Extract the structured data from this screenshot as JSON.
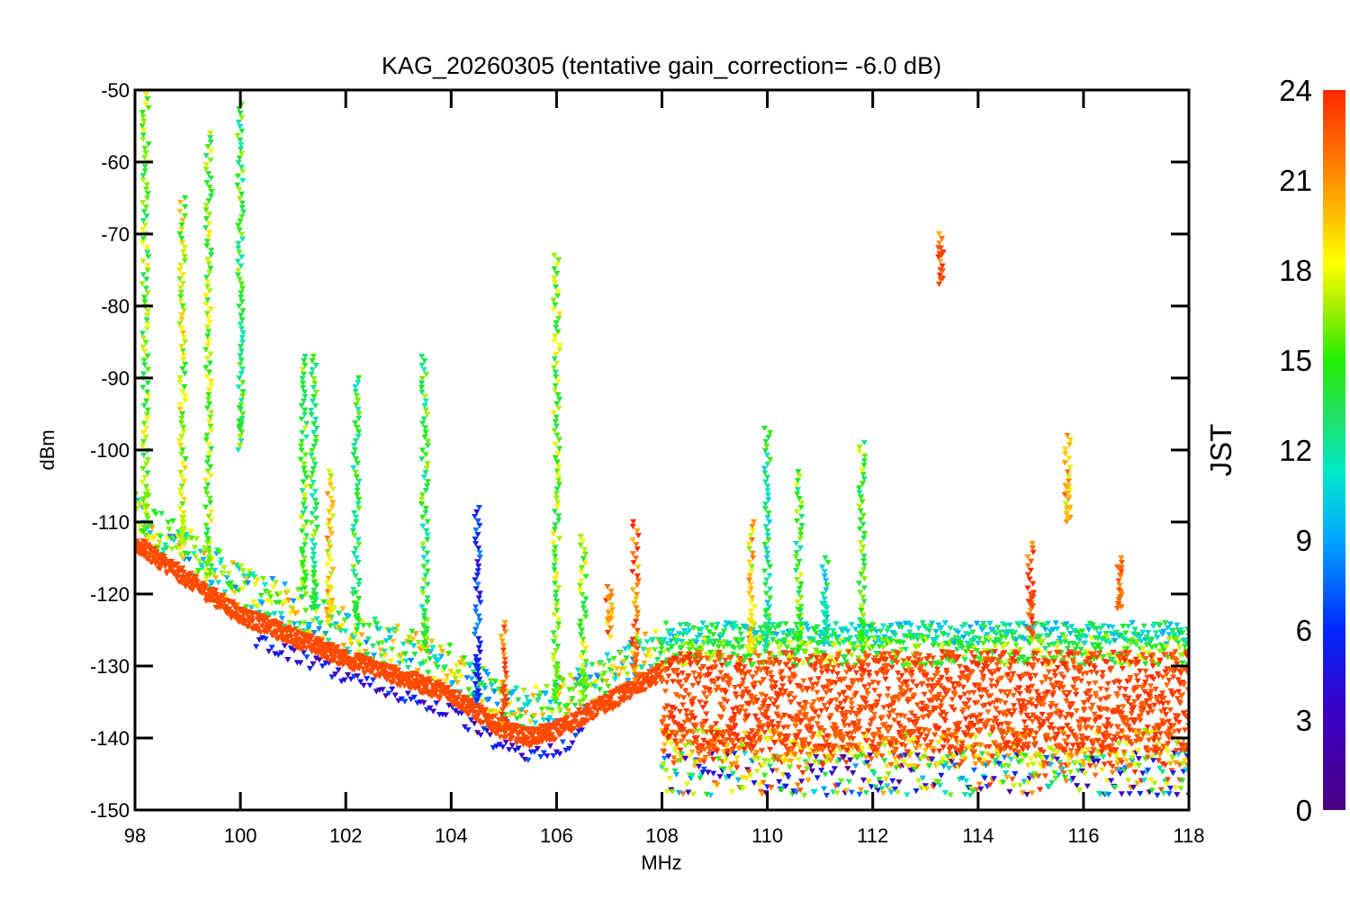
{
  "chart_data": {
    "type": "scatter",
    "title": "KAG_20260305 (tentative gain_correction= -6.0 dB)",
    "xlabel": "MHz",
    "ylabel": "dBm",
    "xlim": [
      98,
      118
    ],
    "ylim": [
      -150,
      -50
    ],
    "x_ticks": [
      98,
      100,
      102,
      104,
      106,
      108,
      110,
      112,
      114,
      116,
      118
    ],
    "y_ticks": [
      -50,
      -60,
      -70,
      -80,
      -90,
      -100,
      -110,
      -120,
      -130,
      -140,
      -150
    ],
    "colorbar": {
      "label": "JST",
      "range": [
        0,
        24
      ],
      "ticks": [
        0,
        3,
        6,
        9,
        12,
        15,
        18,
        21,
        24
      ],
      "colormap": "rainbow (purple → blue → cyan → green → yellow → orange → red)"
    },
    "noise_floor": {
      "x": [
        98,
        100,
        102,
        104,
        105,
        105.5,
        106,
        107,
        108
      ],
      "y": [
        -113,
        -123,
        -129,
        -134,
        -139,
        -140,
        -139,
        -135,
        -131
      ]
    },
    "noise_floor_above_108": {
      "median": -135,
      "spread_low": -148,
      "spread_high": -124
    },
    "signal_lines": [
      {
        "freq": 98.2,
        "top": -50,
        "bottom": -112,
        "jst": 16
      },
      {
        "freq": 98.9,
        "top": -65,
        "bottom": -115,
        "jst": 17
      },
      {
        "freq": 99.4,
        "top": -56,
        "bottom": -118,
        "jst": 16
      },
      {
        "freq": 100.0,
        "top": -52,
        "bottom": -100,
        "jst": 14
      },
      {
        "freq": 101.2,
        "top": -87,
        "bottom": -120,
        "jst": 15
      },
      {
        "freq": 101.4,
        "top": -87,
        "bottom": -122,
        "jst": 14
      },
      {
        "freq": 101.7,
        "top": -103,
        "bottom": -124,
        "jst": 19
      },
      {
        "freq": 102.2,
        "top": -90,
        "bottom": -125,
        "jst": 14
      },
      {
        "freq": 103.5,
        "top": -87,
        "bottom": -128,
        "jst": 14
      },
      {
        "freq": 104.5,
        "top": -108,
        "bottom": -135,
        "jst": 6
      },
      {
        "freq": 105.0,
        "top": -124,
        "bottom": -138,
        "jst": 23
      },
      {
        "freq": 106.0,
        "top": -73,
        "bottom": -136,
        "jst": 16
      },
      {
        "freq": 106.5,
        "top": -112,
        "bottom": -135,
        "jst": 16
      },
      {
        "freq": 107.0,
        "top": -119,
        "bottom": -126,
        "jst": 21
      },
      {
        "freq": 107.5,
        "top": -110,
        "bottom": -132,
        "jst": 22
      },
      {
        "freq": 109.7,
        "top": -110,
        "bottom": -128,
        "jst": 19
      },
      {
        "freq": 110.0,
        "top": -97,
        "bottom": -128,
        "jst": 13
      },
      {
        "freq": 110.6,
        "top": -103,
        "bottom": -128,
        "jst": 15
      },
      {
        "freq": 111.1,
        "top": -115,
        "bottom": -127,
        "jst": 12
      },
      {
        "freq": 111.8,
        "top": -99,
        "bottom": -128,
        "jst": 15
      },
      {
        "freq": 113.3,
        "top": -70,
        "bottom": -77,
        "jst": 23
      },
      {
        "freq": 115.0,
        "top": -113,
        "bottom": -126,
        "jst": 23
      },
      {
        "freq": 115.7,
        "top": -98,
        "bottom": -110,
        "jst": 20
      },
      {
        "freq": 116.7,
        "top": -115,
        "bottom": -122,
        "jst": 22
      }
    ]
  }
}
